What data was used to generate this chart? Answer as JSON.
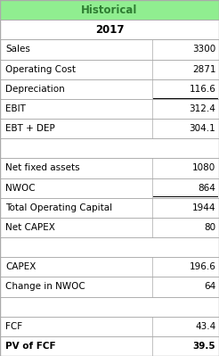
{
  "title": "Historical",
  "year": "2017",
  "title_bg": "#90EE90",
  "title_color": "#2E7D32",
  "grid_color": "#AAAAAA",
  "rows": [
    {
      "label": "Sales",
      "value": "3300",
      "underline_value": false,
      "bold_label": false,
      "bold_value": false,
      "blank": false
    },
    {
      "label": "Operating Cost",
      "value": "2871",
      "underline_value": false,
      "bold_label": false,
      "bold_value": false,
      "blank": false
    },
    {
      "label": "Depreciation",
      "value": "116.6",
      "underline_value": true,
      "bold_label": false,
      "bold_value": false,
      "blank": false
    },
    {
      "label": "EBIT",
      "value": "312.4",
      "underline_value": false,
      "bold_label": false,
      "bold_value": false,
      "blank": false
    },
    {
      "label": "EBT + DEP",
      "value": "304.1",
      "underline_value": false,
      "bold_label": false,
      "bold_value": false,
      "blank": false
    },
    {
      "label": "",
      "value": "",
      "underline_value": false,
      "bold_label": false,
      "bold_value": false,
      "blank": true
    },
    {
      "label": "Net fixed assets",
      "value": "1080",
      "underline_value": false,
      "bold_label": false,
      "bold_value": false,
      "blank": false
    },
    {
      "label": "NWOC",
      "value": "864",
      "underline_value": true,
      "bold_label": false,
      "bold_value": false,
      "blank": false
    },
    {
      "label": "Total Operating Capital",
      "value": "1944",
      "underline_value": false,
      "bold_label": false,
      "bold_value": false,
      "blank": false
    },
    {
      "label": "Net CAPEX",
      "value": "80",
      "underline_value": false,
      "bold_label": false,
      "bold_value": false,
      "blank": false
    },
    {
      "label": "",
      "value": "",
      "underline_value": false,
      "bold_label": false,
      "bold_value": false,
      "blank": true
    },
    {
      "label": "CAPEX",
      "value": "196.6",
      "underline_value": false,
      "bold_label": false,
      "bold_value": false,
      "blank": false
    },
    {
      "label": "Change in NWOC",
      "value": "64",
      "underline_value": false,
      "bold_label": false,
      "bold_value": false,
      "blank": false
    },
    {
      "label": "",
      "value": "",
      "underline_value": false,
      "bold_label": false,
      "bold_value": false,
      "blank": true
    },
    {
      "label": "FCF",
      "value": "43.4",
      "underline_value": false,
      "bold_label": false,
      "bold_value": false,
      "blank": false
    },
    {
      "label": "PV of FCF",
      "value": "39.5",
      "underline_value": false,
      "bold_label": true,
      "bold_value": true,
      "blank": false
    }
  ],
  "col_split": 0.695,
  "figsize": [
    2.46,
    3.99
  ],
  "dpi": 100,
  "font_size": 7.5,
  "header_font_size": 8.5
}
